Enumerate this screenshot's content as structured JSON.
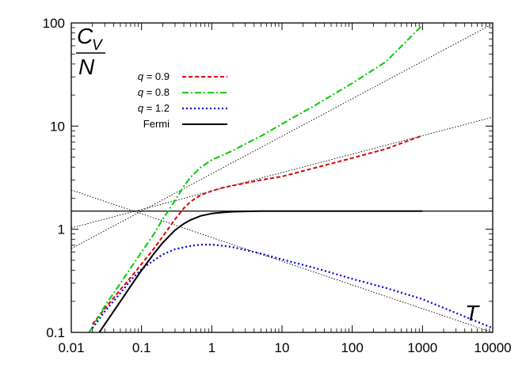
{
  "chart_data": {
    "type": "line",
    "xscale": "log",
    "yscale": "log",
    "xlim": [
      0.01,
      10000
    ],
    "ylim": [
      0.1,
      100
    ],
    "x_ticks": [
      "0.01",
      "0.1",
      "1",
      "10",
      "100",
      "1000",
      "10000"
    ],
    "y_ticks": [
      "0.1",
      "1",
      "10",
      "100"
    ],
    "xlabel": "T",
    "ylabel": {
      "C": "C",
      "sub": "V",
      "den": "N"
    },
    "grid": false,
    "legend_position": "top-left",
    "series": [
      {
        "name": "q = 0.9",
        "color": "#dd0000",
        "dash": "dashed",
        "x": [
          0.02,
          0.03,
          0.05,
          0.07,
          0.1,
          0.15,
          0.2,
          0.3,
          0.4,
          0.5,
          0.7,
          1,
          1.5,
          2,
          3,
          5,
          10,
          30,
          100,
          300,
          1000
        ],
        "y": [
          0.12,
          0.17,
          0.26,
          0.34,
          0.46,
          0.65,
          0.85,
          1.25,
          1.6,
          1.85,
          2.15,
          2.35,
          2.55,
          2.65,
          2.8,
          3.0,
          3.25,
          3.95,
          4.9,
          6.0,
          8.1
        ]
      },
      {
        "name": "q = 0.8",
        "color": "#00cc00",
        "dash": "dashdot",
        "x": [
          0.018,
          0.03,
          0.05,
          0.07,
          0.1,
          0.15,
          0.2,
          0.3,
          0.4,
          0.5,
          0.7,
          1,
          1.5,
          2,
          3,
          5,
          10,
          30,
          100,
          300,
          1000
        ],
        "y": [
          0.1,
          0.18,
          0.3,
          0.42,
          0.6,
          0.9,
          1.25,
          1.9,
          2.6,
          3.2,
          4.0,
          4.7,
          5.3,
          5.8,
          6.7,
          8.0,
          10.5,
          16,
          26,
          42,
          95
        ]
      },
      {
        "name": "q = 1.2",
        "color": "#0000cc",
        "dash": "dotted",
        "x": [
          0.02,
          0.03,
          0.05,
          0.07,
          0.1,
          0.15,
          0.2,
          0.3,
          0.5,
          0.7,
          1,
          1.5,
          2,
          3,
          5,
          10,
          30,
          100,
          300,
          1000,
          10000
        ],
        "y": [
          0.11,
          0.16,
          0.24,
          0.32,
          0.41,
          0.5,
          0.57,
          0.64,
          0.69,
          0.71,
          0.71,
          0.69,
          0.67,
          0.63,
          0.58,
          0.51,
          0.42,
          0.33,
          0.27,
          0.21,
          0.11
        ]
      },
      {
        "name": "Fermi",
        "color": "#000000",
        "dash": "solid",
        "x": [
          0.025,
          0.03,
          0.05,
          0.07,
          0.1,
          0.15,
          0.2,
          0.3,
          0.4,
          0.5,
          0.7,
          1,
          1.5,
          2,
          3,
          5,
          10,
          100,
          1000
        ],
        "y": [
          0.1,
          0.12,
          0.2,
          0.28,
          0.4,
          0.58,
          0.74,
          0.98,
          1.13,
          1.23,
          1.35,
          1.42,
          1.46,
          1.48,
          1.49,
          1.5,
          1.5,
          1.5,
          1.5
        ]
      }
    ],
    "reference_lines": [
      {
        "x": [
          0.01,
          10000
        ],
        "y": [
          1.5,
          1.5
        ]
      },
      {
        "x": [
          0.01,
          10000
        ],
        "y": [
          2.4,
          0.1
        ]
      },
      {
        "x": [
          0.01,
          10000
        ],
        "y": [
          0.65,
          98
        ]
      },
      {
        "x": [
          0.01,
          10000
        ],
        "y": [
          1.03,
          12.2
        ]
      }
    ]
  }
}
